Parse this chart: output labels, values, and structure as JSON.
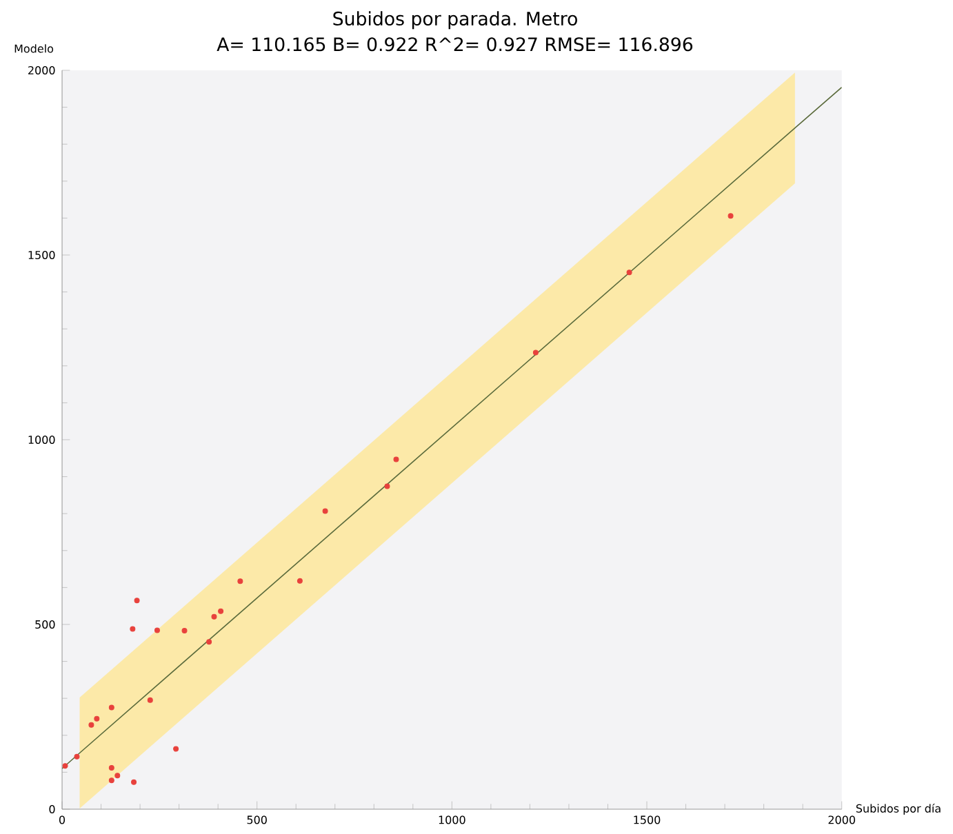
{
  "chart_data": {
    "type": "scatter",
    "title": "Subidos por parada. Metro",
    "subtitle": "A= 110.165    B= 0.922    R^2= 0.927    RMSE= 116.896",
    "xlabel": "Subidos por día",
    "ylabel": "Modelo",
    "xlim": [
      0,
      2000
    ],
    "ylim": [
      0,
      2000
    ],
    "xticks": [
      0,
      500,
      1000,
      1500,
      2000
    ],
    "yticks": [
      0,
      500,
      1000,
      1500,
      2000
    ],
    "grid": false,
    "series": [
      {
        "color": "#e8413c",
        "x": [
          8,
          38,
          75,
          89,
          127,
          127,
          127,
          142,
          184,
          181,
          192,
          244,
          226,
          292,
          314,
          377,
          390,
          407,
          457,
          610,
          675,
          834,
          857,
          1215,
          1455,
          1715
        ],
        "values": [
          117,
          142,
          228,
          245,
          275,
          112,
          78,
          91,
          73,
          488,
          565,
          484,
          295,
          163,
          483,
          453,
          521,
          536,
          617,
          618,
          807,
          874,
          947,
          1236,
          1453,
          1606
        ]
      },
      {
        "type": "line",
        "color": "#5b6b3c",
        "x": [
          0,
          45,
          1880,
          2000
        ],
        "values": [
          110,
          152,
          1844,
          1954
        ],
        "lower": [
          null,
          2,
          1694,
          null
        ],
        "upper": [
          null,
          302,
          1994,
          null
        ]
      }
    ]
  }
}
